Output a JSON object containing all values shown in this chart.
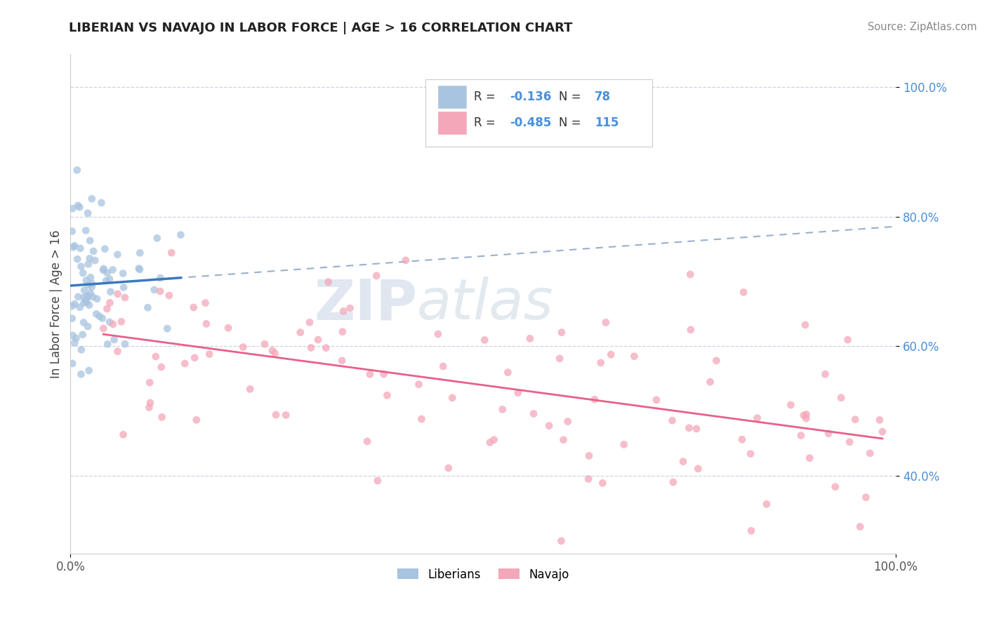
{
  "title": "LIBERIAN VS NAVAJO IN LABOR FORCE | AGE > 16 CORRELATION CHART",
  "source_text": "Source: ZipAtlas.com",
  "ylabel": "In Labor Force | Age > 16",
  "xlim": [
    0.0,
    1.0
  ],
  "ylim": [
    0.28,
    1.05
  ],
  "yticks": [
    0.4,
    0.6,
    0.8,
    1.0
  ],
  "xtick_labels": [
    "0.0%",
    "100.0%"
  ],
  "ytick_labels": [
    "40.0%",
    "60.0%",
    "80.0%",
    "100.0%"
  ],
  "legend_r1": "-0.136",
  "legend_n1": "78",
  "legend_r2": "-0.485",
  "legend_n2": "115",
  "liberian_color": "#a8c4e0",
  "navajo_color": "#f4a7b9",
  "liberian_line_color": "#3a7abf",
  "navajo_line_color": "#e8608a",
  "dashed_line_color": "#9ab0cc",
  "background_color": "#ffffff",
  "watermark_zip": "ZIP",
  "watermark_atlas": "atlas",
  "title_fontsize": 13,
  "tick_fontsize": 12,
  "ylabel_fontsize": 12
}
